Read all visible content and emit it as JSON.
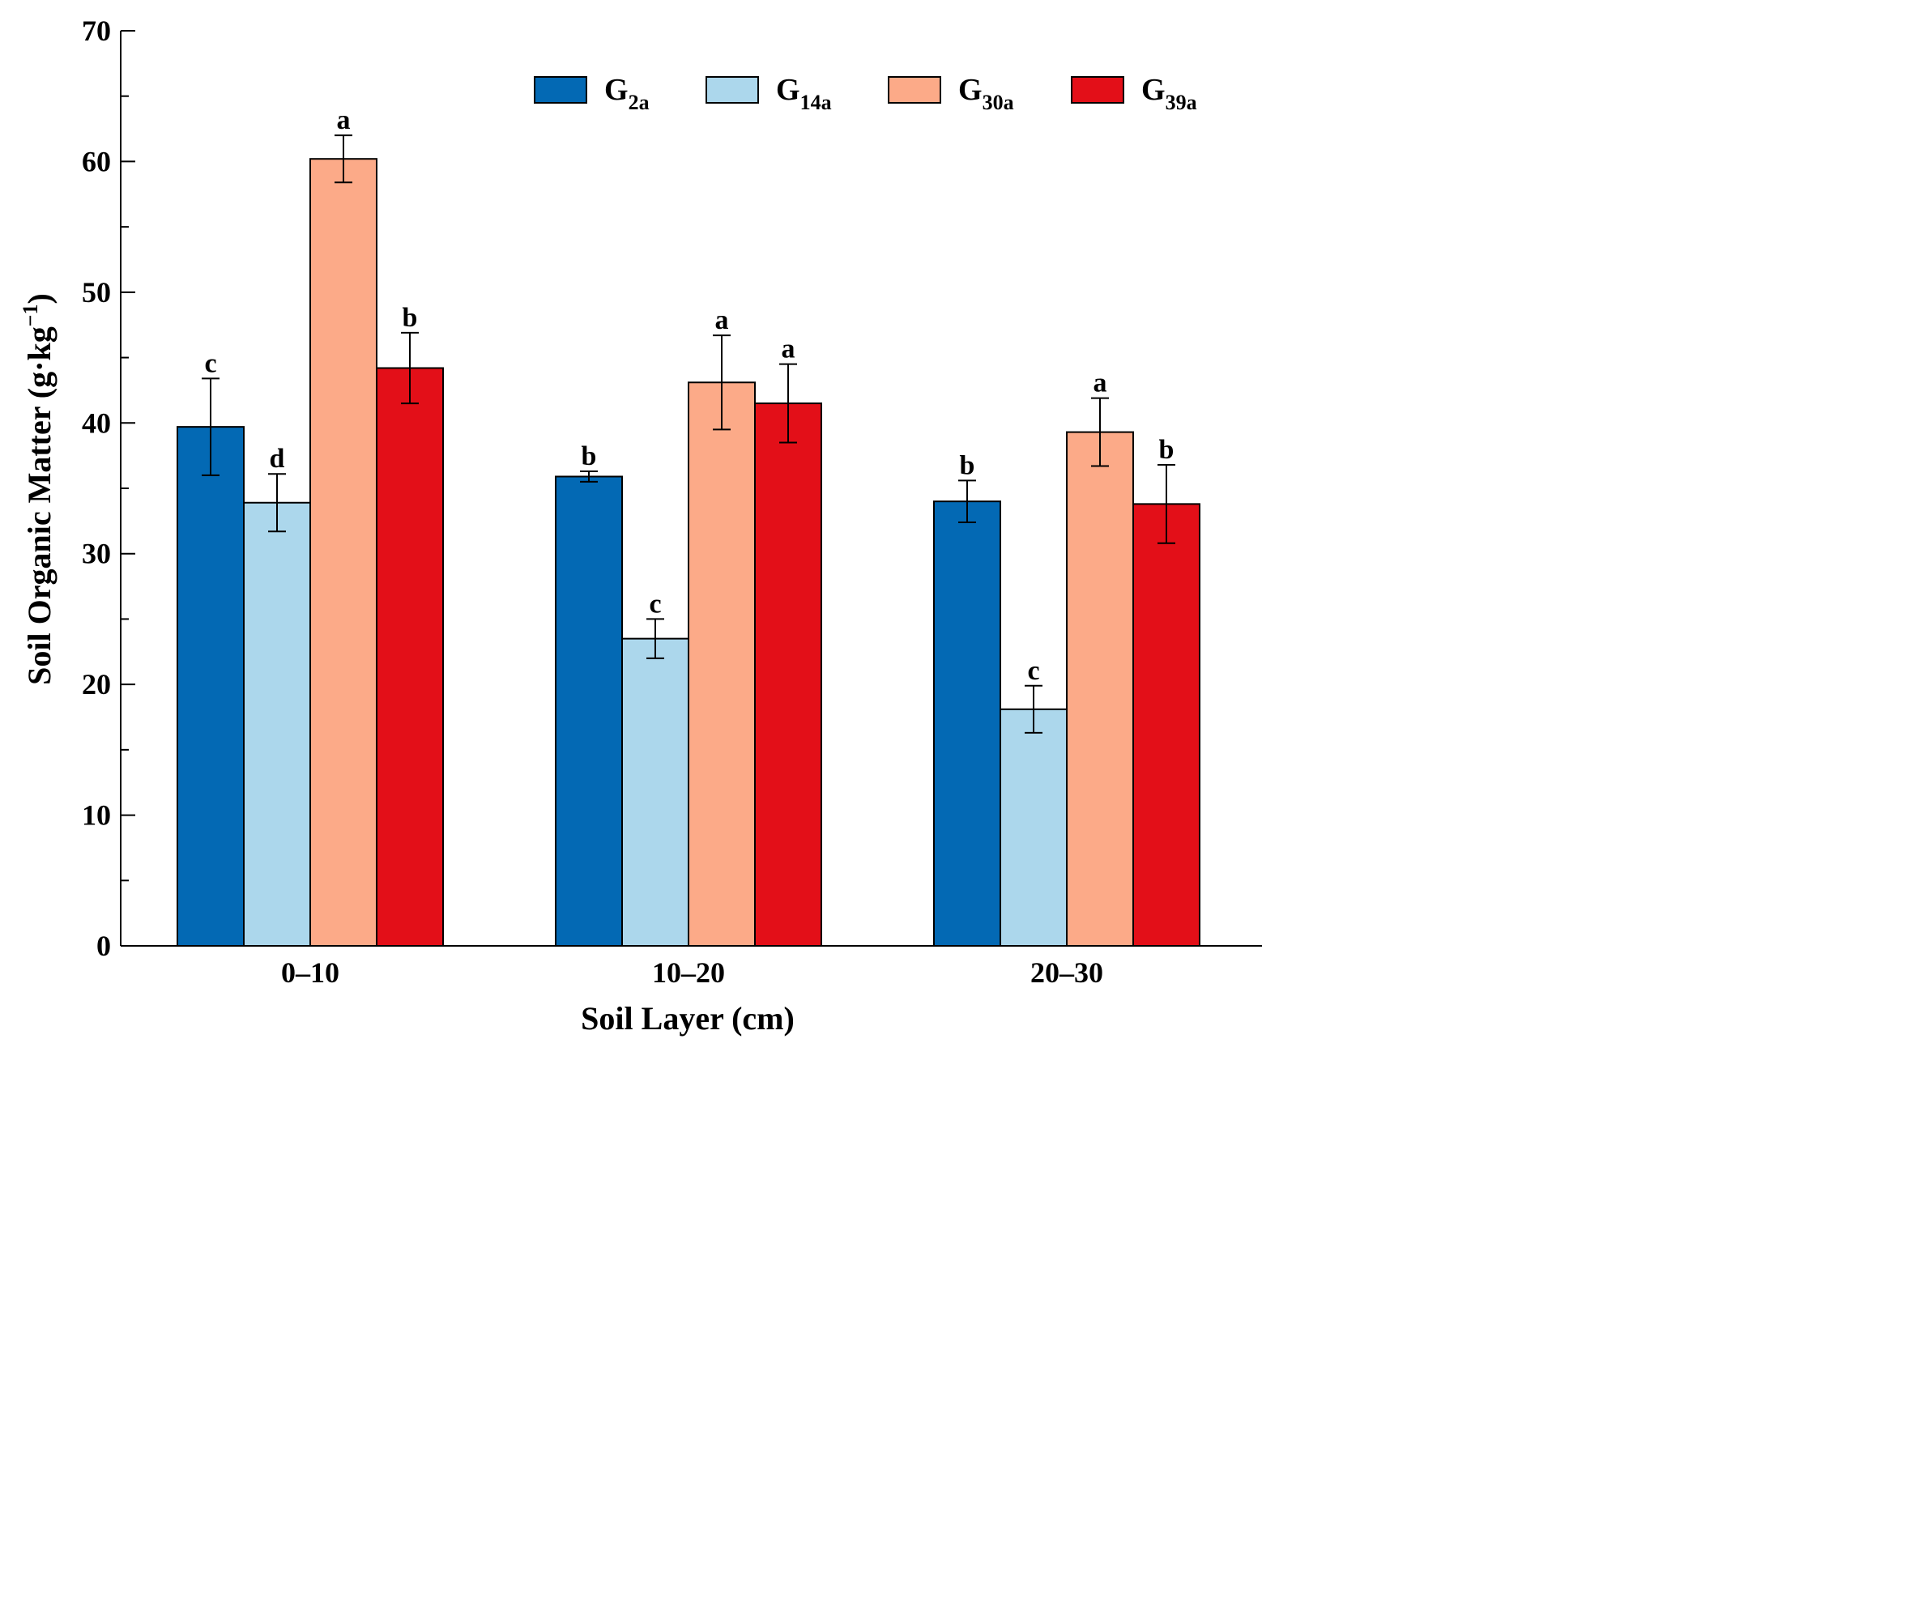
{
  "chart_data": {
    "type": "bar",
    "title": "",
    "xlabel": "Soil Layer (cm)",
    "ylabel": {
      "main": "Soil Organic Matter (g·kg",
      "sup": "−1",
      "close": ")"
    },
    "ylim": [
      0,
      70
    ],
    "y_ticks": [
      "0",
      "10",
      "20",
      "30",
      "40",
      "50",
      "60",
      "70"
    ],
    "grid": false,
    "legend_position": "top-right",
    "categories": [
      "0–10",
      "10–20",
      "20–30"
    ],
    "series": [
      {
        "name": "G2a",
        "base": "G",
        "sub": "2a",
        "color": "#0369b4",
        "values": [
          39.7,
          35.9,
          34.0
        ],
        "errors": [
          3.7,
          0.4,
          1.6
        ],
        "letters": [
          "c",
          "b",
          "b"
        ]
      },
      {
        "name": "G14a",
        "base": "G",
        "sub": "14a",
        "color": "#acd7ec",
        "values": [
          33.9,
          23.5,
          18.1
        ],
        "errors": [
          2.2,
          1.5,
          1.8
        ],
        "letters": [
          "d",
          "c",
          "c"
        ]
      },
      {
        "name": "G30a",
        "base": "G",
        "sub": "30a",
        "color": "#fcaa88",
        "values": [
          60.2,
          43.1,
          39.3
        ],
        "errors": [
          1.8,
          3.6,
          2.6
        ],
        "letters": [
          "a",
          "a",
          "a"
        ]
      },
      {
        "name": "G39a",
        "base": "G",
        "sub": "39a",
        "color": "#e30f18",
        "values": [
          44.2,
          41.5,
          33.8
        ],
        "errors": [
          2.7,
          3.0,
          3.0
        ],
        "letters": [
          "b",
          "a",
          "b"
        ]
      }
    ]
  }
}
